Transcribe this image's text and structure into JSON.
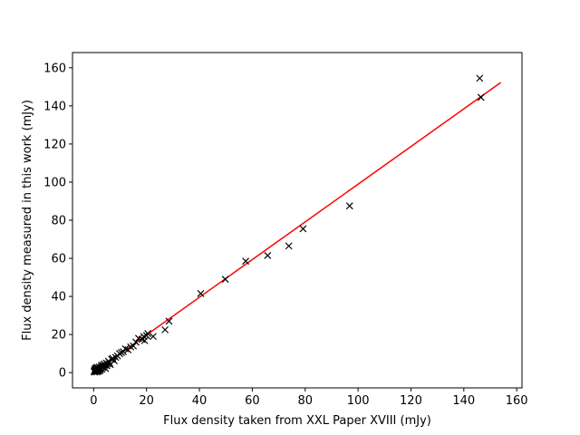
{
  "chart_data": {
    "type": "scatter",
    "xlabel": "Flux density taken from XXL Paper XVIII (mJy)",
    "ylabel": "Flux density measured in this work (mJy)",
    "xlim": [
      -8,
      162
    ],
    "ylim": [
      -8,
      168
    ],
    "xticks": [
      0,
      20,
      40,
      60,
      80,
      100,
      120,
      140,
      160
    ],
    "yticks": [
      0,
      20,
      40,
      60,
      80,
      100,
      120,
      140,
      160
    ],
    "grid": false,
    "marker": "x",
    "colors": {
      "points": "#000000",
      "fit_line": "#ff0000"
    },
    "series": [
      {
        "type": "scatter",
        "x": [
          0.2,
          0.3,
          0.4,
          0.5,
          0.6,
          0.7,
          0.8,
          0.9,
          1.0,
          1.1,
          1.2,
          1.3,
          1.5,
          1.6,
          1.8,
          2.0,
          2.1,
          2.3,
          2.5,
          2.7,
          2.9,
          3.1,
          3.3,
          3.5,
          3.7,
          4.0,
          4.2,
          4.5,
          4.8,
          5.0,
          5.3,
          5.6,
          6.0,
          6.3,
          6.8,
          7.2,
          7.8,
          8.3,
          9.0,
          9.8,
          10.5,
          11.2,
          12.0,
          13.0,
          14.0,
          15.0,
          16.0,
          17.0,
          18.3,
          19.0,
          19.3,
          20.0,
          20.5,
          22.5,
          27.0,
          28.5,
          40.5,
          49.8,
          57.5,
          65.8,
          73.8,
          79.2,
          96.8,
          146.0,
          146.5
        ],
        "y": [
          0.5,
          1.0,
          0.3,
          1.5,
          2.0,
          0.8,
          1.2,
          2.3,
          0.6,
          1.8,
          2.8,
          0.4,
          1.0,
          2.5,
          1.4,
          0.7,
          3.0,
          2.0,
          1.2,
          2.6,
          3.5,
          1.8,
          4.0,
          2.6,
          3.2,
          4.5,
          3.8,
          2.2,
          5.0,
          3.6,
          4.5,
          6.0,
          5.2,
          4.2,
          7.0,
          7.5,
          6.2,
          8.0,
          8.8,
          10.0,
          10.5,
          11.0,
          12.5,
          12.0,
          13.5,
          14.0,
          16.0,
          18.0,
          17.5,
          19.0,
          16.8,
          19.5,
          20.5,
          19.0,
          22.5,
          27.0,
          41.5,
          49.0,
          58.5,
          61.5,
          66.5,
          75.5,
          87.5,
          154.5,
          144.5
        ]
      },
      {
        "type": "line",
        "x": [
          0,
          154
        ],
        "y": [
          0,
          152.3
        ]
      }
    ]
  }
}
